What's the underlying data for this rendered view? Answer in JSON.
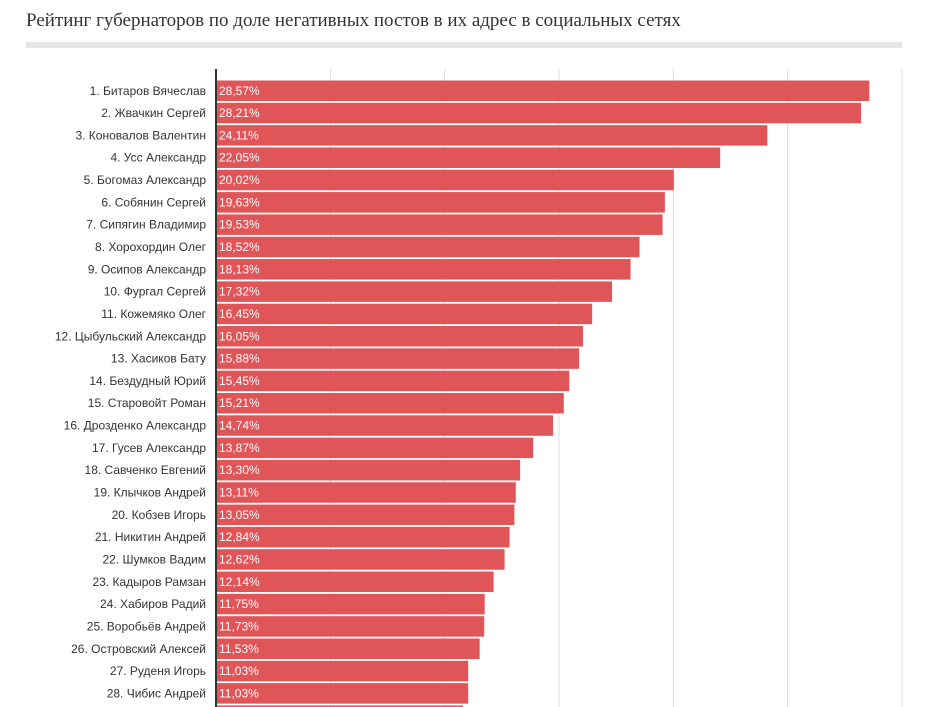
{
  "title": "Рейтинг губернаторов по доле негативных постов в их адрес в социальных сетях",
  "colors": {
    "bar": "#e05558",
    "grid": "#dddddd",
    "axis": "#333333",
    "title_rule": "#e6e6e6"
  },
  "chart_data": {
    "type": "bar",
    "orientation": "horizontal",
    "title": "Рейтинг губернаторов по доле негативных постов в их адрес в социальных сетях",
    "xlabel": "",
    "ylabel": "",
    "xlim": [
      0,
      30
    ],
    "grid": true,
    "value_suffix": "%",
    "categories": [
      "1. Битаров Вячеслав",
      "2. Жвачкин Сергей",
      "3. Коновалов Валентин",
      "4. Усс Александр",
      "5. Богомаз Александр",
      "6. Собянин Сергей",
      "7. Сипягин Владимир",
      "8. Хорохордин Олег",
      "9. Осипов Александр",
      "10. Фургал Сергей",
      "11. Кожемяко Олег",
      "12. Цыбульский Александр",
      "13. Хасиков Бату",
      "14. Бездудный Юрий",
      "15. Старовойт Роман",
      "16. Дрозденко Александр",
      "17. Гусев Александр",
      "18. Савченко Евгений",
      "19. Клычков Андрей",
      "20. Кобзев Игорь",
      "21. Никитин Андрей",
      "22. Шумков Вадим",
      "23. Кадыров Рамзан",
      "24. Хабиров Радий",
      "25. Воробьёв Андрей",
      "26. Островский Алексей",
      "27. Руденя Игорь",
      "28. Чибис Андрей",
      ""
    ],
    "values": [
      28.57,
      28.21,
      24.11,
      22.05,
      20.02,
      19.63,
      19.53,
      18.52,
      18.13,
      17.32,
      16.45,
      16.05,
      15.88,
      15.45,
      15.21,
      14.74,
      13.87,
      13.3,
      13.11,
      13.05,
      12.84,
      12.62,
      12.14,
      11.75,
      11.73,
      11.53,
      11.03,
      11.03,
      10.8
    ],
    "value_labels": [
      "28,57%",
      "28,21%",
      "24,11%",
      "22,05%",
      "20,02%",
      "19,63%",
      "19,53%",
      "18,52%",
      "18,13%",
      "17,32%",
      "16,45%",
      "16,05%",
      "15,88%",
      "15,45%",
      "15,21%",
      "14,74%",
      "13,87%",
      "13,30%",
      "13,11%",
      "13,05%",
      "12,84%",
      "12,62%",
      "12,14%",
      "11,75%",
      "11,73%",
      "11,53%",
      "11,03%",
      "11,03%",
      ""
    ]
  }
}
